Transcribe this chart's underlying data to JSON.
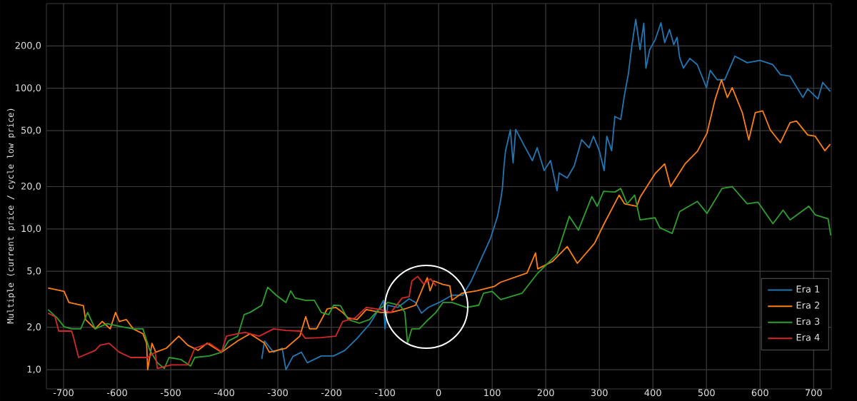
{
  "chart_data": {
    "type": "line",
    "ylabel": "Multiple (current price / cycle low price)",
    "xlim": [
      -732,
      733
    ],
    "ylim": [
      0.73,
      400
    ],
    "log": "y",
    "grid": true,
    "legend": "bottom right",
    "xticks": [
      -700,
      -600,
      -500,
      -400,
      -300,
      -200,
      -100,
      0,
      100,
      200,
      300,
      400,
      500,
      600,
      700
    ],
    "yticks": [
      {
        "value": 1,
        "label": "1,0"
      },
      {
        "value": 2,
        "label": "2,0"
      },
      {
        "value": 5,
        "label": "5,0"
      },
      {
        "value": 10,
        "label": "10,0"
      },
      {
        "value": 20,
        "label": "20,0"
      },
      {
        "value": 50,
        "label": "50,0"
      },
      {
        "value": 100,
        "label": "100,0"
      },
      {
        "value": 200,
        "label": "200,0"
      }
    ],
    "series": [
      {
        "name": "Era 1",
        "color": "#1f77b4",
        "x": [
          -330,
          -325,
          -308,
          -292,
          -285,
          -272,
          -256,
          -245,
          -219,
          -196,
          -175,
          -152,
          -129,
          -112,
          -103,
          -100,
          -95,
          -76,
          -55,
          -43,
          -32,
          -19,
          4,
          25,
          45,
          61,
          79,
          97,
          110,
          116,
          119,
          122,
          125,
          134,
          139,
          144,
          160,
          175,
          184,
          197,
          209,
          221,
          225,
          240,
          253,
          267,
          281,
          289,
          300,
          309,
          314,
          323,
          329,
          340,
          347,
          354,
          361,
          368,
          376,
          383,
          387,
          394,
          404,
          415,
          422,
          431,
          439,
          445,
          450,
          457,
          469,
          483,
          500,
          507,
          520,
          534,
          553,
          576,
          600,
          624,
          638,
          656,
          680,
          689,
          708,
          717,
          731
        ],
        "values": [
          1.19,
          1.6,
          1.33,
          1.42,
          1.0,
          1.24,
          1.33,
          1.12,
          1.25,
          1.25,
          1.37,
          1.67,
          2.1,
          2.67,
          3.11,
          1.95,
          2.87,
          2.77,
          3.19,
          3.0,
          2.52,
          2.77,
          3.04,
          3.38,
          3.38,
          4.27,
          6.07,
          8.6,
          12.3,
          16.2,
          19.4,
          27.8,
          36,
          50.6,
          29.5,
          51,
          39,
          30.6,
          37.8,
          26,
          30.6,
          18.7,
          25,
          23,
          28,
          43,
          37.8,
          45.6,
          36,
          26,
          45.6,
          36,
          63,
          60,
          90,
          125,
          204,
          309,
          188,
          290,
          139,
          188,
          220,
          292,
          211,
          262,
          204,
          230,
          165,
          139,
          163,
          147,
          101,
          134,
          115,
          115,
          169,
          152,
          158,
          147,
          125,
          122,
          86,
          99,
          84,
          110,
          95
        ]
      },
      {
        "name": "Era 2",
        "color": "#ff7f0e",
        "x": [
          -729,
          -699,
          -690,
          -663,
          -659,
          -641,
          -628,
          -613,
          -603,
          -596,
          -583,
          -570,
          -552,
          -545,
          -543,
          -535,
          -528,
          -508,
          -485,
          -468,
          -449,
          -432,
          -405,
          -375,
          -352,
          -325,
          -316,
          -285,
          -259,
          -248,
          -241,
          -228,
          -208,
          -192,
          -179,
          -169,
          -152,
          -135,
          -108,
          -89,
          -63,
          -43,
          -28,
          -21,
          -16,
          -9,
          8,
          21,
          25,
          44,
          71,
          104,
          115,
          165,
          181,
          185,
          212,
          240,
          259,
          291,
          309,
          337,
          347,
          370,
          376,
          404,
          422,
          433,
          460,
          483,
          501,
          516,
          528,
          539,
          548,
          567,
          579,
          591,
          605,
          619,
          638,
          656,
          668,
          689,
          703,
          721,
          731
        ],
        "values": [
          3.8,
          3.6,
          3.0,
          2.85,
          2.27,
          1.95,
          2.2,
          1.95,
          2.55,
          2.2,
          2.27,
          1.95,
          1.8,
          1.54,
          1.0,
          1.54,
          1.33,
          1.42,
          1.73,
          1.49,
          1.37,
          1.54,
          1.33,
          1.6,
          1.8,
          1.54,
          1.33,
          1.42,
          1.73,
          2.38,
          1.95,
          1.95,
          2.7,
          2.77,
          2.55,
          2.33,
          2.27,
          2.67,
          2.55,
          2.55,
          2.7,
          2.87,
          3.94,
          4.5,
          3.63,
          4.27,
          4.03,
          3.94,
          3.11,
          3.5,
          3.63,
          3.9,
          4.17,
          4.86,
          6.75,
          5.2,
          5.85,
          7.5,
          5.7,
          7.9,
          10.9,
          17.4,
          15.1,
          14.5,
          16.8,
          24.7,
          29,
          20,
          29,
          35.6,
          48,
          83,
          115,
          86,
          101,
          67,
          43,
          67,
          69,
          50.6,
          41,
          57,
          58.5,
          46.6,
          45.6,
          36,
          40
        ]
      },
      {
        "name": "Era 3",
        "color": "#2ca02c",
        "x": [
          -729,
          -712,
          -699,
          -685,
          -668,
          -655,
          -641,
          -619,
          -592,
          -570,
          -552,
          -539,
          -525,
          -512,
          -503,
          -481,
          -463,
          -455,
          -428,
          -405,
          -392,
          -375,
          -363,
          -352,
          -330,
          -319,
          -303,
          -285,
          -276,
          -268,
          -249,
          -232,
          -219,
          -205,
          -196,
          -183,
          -169,
          -148,
          -129,
          -112,
          -95,
          -72,
          -63,
          -58,
          -50,
          -36,
          -23,
          -5,
          8,
          25,
          52,
          75,
          84,
          100,
          116,
          156,
          184,
          221,
          244,
          261,
          286,
          296,
          308,
          329,
          340,
          352,
          366,
          376,
          404,
          413,
          436,
          450,
          483,
          501,
          529,
          548,
          576,
          596,
          624,
          643,
          656,
          691,
          703,
          727,
          732
        ],
        "values": [
          2.67,
          2.33,
          2.02,
          1.95,
          1.95,
          2.55,
          1.95,
          2.12,
          2.02,
          1.95,
          1.95,
          1.37,
          1.12,
          1.02,
          1.22,
          1.18,
          1.06,
          1.22,
          1.25,
          1.33,
          1.6,
          1.73,
          2.46,
          2.55,
          2.87,
          3.85,
          3.38,
          3.0,
          3.63,
          3.23,
          3.11,
          3.11,
          2.55,
          2.46,
          2.87,
          2.85,
          2.27,
          2.14,
          2.27,
          2.67,
          3.0,
          2.87,
          2.55,
          1.54,
          1.95,
          1.95,
          2.2,
          2.55,
          3.0,
          3.0,
          2.77,
          2.87,
          3.5,
          3.6,
          3.15,
          3.5,
          4.8,
          6.6,
          12.3,
          9.8,
          17,
          14.5,
          18.5,
          18.3,
          19.4,
          15.1,
          17.4,
          11.6,
          12,
          10.2,
          9.3,
          13.3,
          15.7,
          12.9,
          19.4,
          20,
          15.1,
          15.5,
          10.9,
          13.6,
          11.6,
          14.5,
          12.6,
          11.8,
          9.0
        ]
      },
      {
        "name": "Era 4",
        "color": "#d62728",
        "x": [
          -729,
          -716,
          -709,
          -685,
          -681,
          -672,
          -641,
          -632,
          -615,
          -596,
          -575,
          -543,
          -529,
          -525,
          -499,
          -468,
          -455,
          -428,
          -405,
          -396,
          -375,
          -361,
          -335,
          -308,
          -285,
          -259,
          -249,
          -219,
          -192,
          -179,
          -156,
          -135,
          -108,
          -89,
          -68,
          -55,
          -50,
          -39,
          -28,
          -15,
          -5
        ],
        "values": [
          2.52,
          2.38,
          1.88,
          1.88,
          1.67,
          1.22,
          1.37,
          1.49,
          1.54,
          1.33,
          1.22,
          1.22,
          1.33,
          1.02,
          1.08,
          1.08,
          1.42,
          1.54,
          1.34,
          1.73,
          1.8,
          1.84,
          1.73,
          1.95,
          1.9,
          1.88,
          1.67,
          1.69,
          1.73,
          2.2,
          2.33,
          2.77,
          2.67,
          2.55,
          3.23,
          3.3,
          4.27,
          4.6,
          4.07,
          4.42,
          3.94
        ]
      }
    ]
  }
}
